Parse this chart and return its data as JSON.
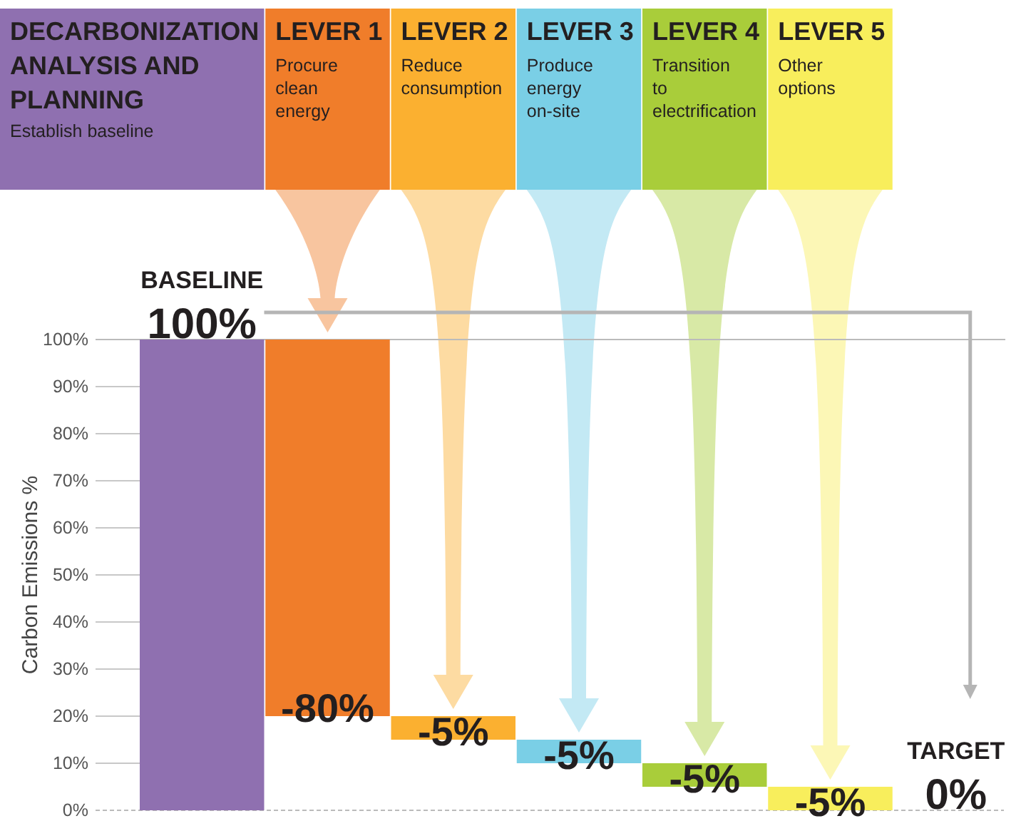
{
  "chart_data": {
    "type": "bar",
    "ylabel": "Carbon Emissions %",
    "categories": [
      null,
      null,
      null,
      null,
      null,
      null,
      null
    ],
    "values": [
      100,
      -80,
      -5,
      -5,
      -5,
      -5,
      0
    ],
    "base": [
      0,
      100,
      20,
      15,
      10,
      5,
      null
    ],
    "colors": [
      "#8f70b0",
      "#f07d2a",
      "#fbb030",
      "#7acfe6",
      "#a9cd3a",
      "#f8ee5c",
      "#999999"
    ],
    "value_labels": [
      "100%",
      "-80%",
      "-5%",
      "-5%",
      "-5%",
      "-5%",
      "0%"
    ],
    "ylim": [
      0,
      100
    ],
    "yticks": [
      {
        "value": 0,
        "label": "0%"
      },
      {
        "value": 10,
        "label": "10%"
      },
      {
        "value": 20,
        "label": "20%"
      },
      {
        "value": 30,
        "label": "30%"
      },
      {
        "value": 40,
        "label": "40%"
      },
      {
        "value": 50,
        "label": "50%"
      },
      {
        "value": 60,
        "label": "60%"
      },
      {
        "value": 70,
        "label": "70%"
      },
      {
        "value": 80,
        "label": "80%"
      },
      {
        "value": 90,
        "label": "90%"
      },
      {
        "value": 100,
        "label": "100%"
      }
    ],
    "ref_lines": [
      {
        "axis": "y",
        "value": 100,
        "color": "#bbbbbb"
      }
    ],
    "annotations": [
      "DECARBONIZATION ANALYSIS AND PLANNING",
      "Establish baseline",
      "LEVER 1",
      "Procure clean energy",
      "LEVER 2",
      "Reduce consumption",
      "LEVER 3",
      "Produce energy on-site",
      "LEVER 4",
      "Transition to electrification",
      "LEVER 5",
      "Other options",
      "BASELINE",
      "TARGET"
    ],
    "grid": false
  }
}
